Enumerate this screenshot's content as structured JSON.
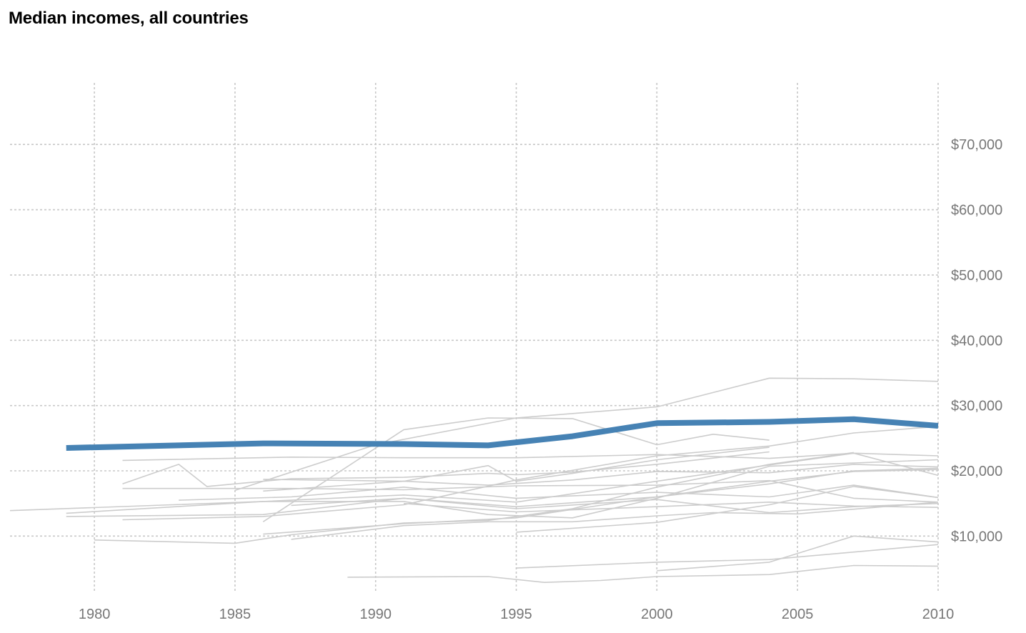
{
  "chart_data": {
    "type": "line",
    "title": "Median incomes, all countries",
    "xlabel": "",
    "ylabel": "",
    "xlim": [
      1977,
      2010
    ],
    "ylim": [
      1500,
      79000
    ],
    "x_ticks": [
      1980,
      1985,
      1990,
      1995,
      2000,
      2005,
      2010
    ],
    "x_tick_labels": [
      "1980",
      "1985",
      "1990",
      "1995",
      "2000",
      "2005",
      "2010"
    ],
    "y_ticks": [
      10000,
      20000,
      30000,
      40000,
      50000,
      60000,
      70000
    ],
    "y_tick_labels": [
      "$10,000",
      "$20,000",
      "$30,000",
      "$40,000",
      "$50,000",
      "$60,000",
      "$70,000"
    ],
    "grid": true,
    "y_axis_position": "right",
    "colors": {
      "highlight": "#4682b4",
      "background": "#cccccc",
      "grid": "#c8c8c8",
      "tick": "#777777"
    },
    "highlight": {
      "x": [
        1979,
        1986,
        1991,
        1994,
        1997,
        2000,
        2004,
        2007,
        2010
      ],
      "values": [
        23500,
        24200,
        24100,
        23900,
        25300,
        27300,
        27500,
        27900,
        26900
      ]
    },
    "series": [
      {
        "x": [
          1989,
          1994,
          1996,
          1998,
          2000,
          2004,
          2007,
          2010
        ],
        "values": [
          3700,
          3800,
          2900,
          3200,
          3800,
          4100,
          5500,
          5400
        ]
      },
      {
        "x": [
          1995,
          2000,
          2004,
          2010
        ],
        "values": [
          5100,
          6000,
          6400,
          8700
        ]
      },
      {
        "x": [
          2000,
          2004,
          2007,
          2010
        ],
        "values": [
          4700,
          6000,
          10000,
          9100
        ]
      },
      {
        "x": [
          1980,
          1985,
          1987,
          1991,
          1994,
          1997,
          2000,
          2004,
          2007
        ],
        "values": [
          9400,
          8900,
          10200,
          12000,
          12400,
          14200,
          17500,
          21000,
          22800
        ]
      },
      {
        "x": [
          1986,
          1991,
          1995,
          2000,
          2004,
          2007,
          2010
        ],
        "values": [
          10300,
          11900,
          12800,
          16000,
          18400,
          19900,
          20200
        ]
      },
      {
        "x": [
          1977,
          1986,
          1991,
          1994,
          1997,
          2000,
          2004,
          2010
        ],
        "values": [
          13900,
          15300,
          15300,
          13300,
          12800,
          15800,
          20700,
          21700
        ]
      },
      {
        "x": [
          1979,
          1986,
          1991,
          1995,
          2000,
          2004,
          2007,
          2010
        ],
        "values": [
          13000,
          13300,
          15800,
          14500,
          16000,
          18000,
          20000,
          20400
        ]
      },
      {
        "x": [
          1981,
          1986,
          1991,
          1995,
          2000,
          2004,
          2007,
          2010
        ],
        "values": [
          12500,
          13000,
          14800,
          18600,
          22300,
          23800,
          25800,
          26800
        ]
      },
      {
        "x": [
          1979,
          1986,
          1991,
          1995,
          2000,
          2004,
          2007,
          2010
        ],
        "values": [
          13500,
          15300,
          16300,
          15200,
          18400,
          20900,
          22700,
          19300
        ]
      },
      {
        "x": [
          1983,
          1987,
          1991,
          1995,
          2000,
          2004,
          2007,
          2010
        ],
        "values": [
          15500,
          16000,
          17500,
          15800,
          16700,
          16000,
          17800,
          15900
        ]
      },
      {
        "x": [
          1981,
          1987,
          1991,
          1995,
          2000,
          2004,
          2007,
          2010
        ],
        "values": [
          17300,
          17300,
          17100,
          17700,
          17800,
          18500,
          15800,
          15200
        ]
      },
      {
        "x": [
          1985,
          1990,
          1995,
          2000,
          2004,
          2007,
          2010
        ],
        "values": [
          17000,
          24000,
          28100,
          29800,
          34200,
          34100,
          33700
        ]
      },
      {
        "x": [
          1981,
          1983,
          1984,
          1987,
          1991,
          1994,
          1995,
          1997,
          2000,
          2004
        ],
        "values": [
          18000,
          21000,
          17600,
          18800,
          19000,
          19600,
          19400,
          19800,
          21000,
          22900
        ]
      },
      {
        "x": [
          1981,
          1987,
          1991,
          1995,
          2000,
          2004,
          2007,
          2010
        ],
        "values": [
          21600,
          22100,
          22000,
          22000,
          22500,
          21900,
          22700,
          22300
        ]
      },
      {
        "x": [
          1986,
          1991,
          1994,
          1997,
          2000,
          2002,
          2004
        ],
        "values": [
          12200,
          26300,
          28100,
          28000,
          24000,
          25600,
          24700
        ]
      },
      {
        "x": [
          1986,
          1991,
          1994,
          1995,
          1997,
          2000,
          2004
        ],
        "values": [
          18700,
          18400,
          20800,
          18400,
          19600,
          21700,
          23600
        ]
      },
      {
        "x": [
          1986,
          1991,
          1994,
          1997,
          2000,
          2004,
          2007,
          2010
        ],
        "values": [
          16900,
          18400,
          17800,
          18600,
          19900,
          19700,
          21000,
          20600
        ]
      },
      {
        "x": [
          1995,
          2000,
          2004,
          2007,
          2010
        ],
        "values": [
          10600,
          12100,
          14800,
          17600,
          15900
        ]
      },
      {
        "x": [
          1991,
          1995,
          2000,
          2004,
          2007,
          2010
        ],
        "values": [
          15000,
          13700,
          14500,
          15200,
          14600,
          14400
        ]
      },
      {
        "x": [
          1987,
          1991,
          1995,
          2000,
          2004,
          2007,
          2010
        ],
        "values": [
          14700,
          15800,
          14200,
          15600,
          13600,
          14500,
          15000
        ]
      },
      {
        "x": [
          1987,
          1991,
          1994,
          1997,
          2000,
          2002,
          2005,
          2010
        ],
        "values": [
          9500,
          11600,
          12200,
          12200,
          13100,
          13600,
          13400,
          15200
        ]
      }
    ]
  }
}
